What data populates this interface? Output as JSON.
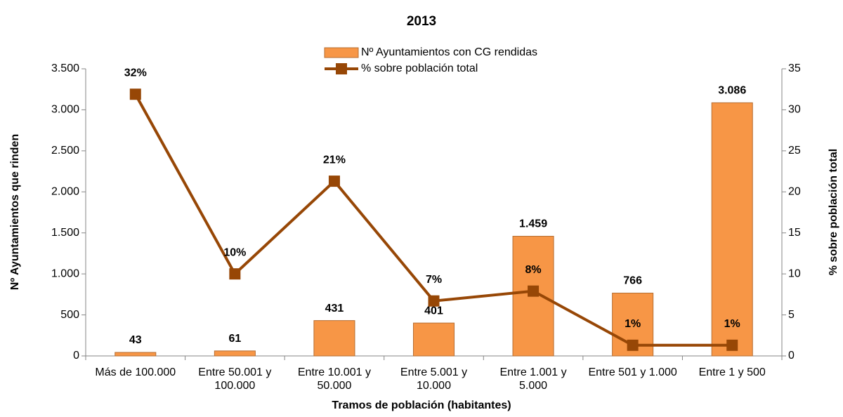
{
  "chart_data": {
    "type": "bar_line",
    "title": "2013",
    "x_label": "Tramos de población (habitantes)",
    "y_label": "Nº  Ayuntamientos que rinden",
    "y2_label": "% sobre población total",
    "categories": [
      "Más de 100.000",
      "Entre 50.001 y 100.000",
      "Entre 10.001 y 50.000",
      "Entre 5.001 y 10.000",
      "Entre 1.001 y 5.000",
      "Entre 501 y 1.000",
      "Entre 1 y 500"
    ],
    "series": [
      {
        "name": "Nº Ayuntamientos con CG rendidas",
        "type": "bar",
        "color": "#f79646",
        "values": [
          43,
          61,
          431,
          401,
          1459,
          766,
          3086
        ],
        "value_labels": [
          "43",
          "61",
          "431",
          "401",
          "1.459",
          "766",
          "3.086"
        ]
      },
      {
        "name": "% sobre población total",
        "type": "line",
        "axis": "y2",
        "color": "#974706",
        "values": [
          31.9,
          10,
          21.3,
          6.7,
          7.9,
          1.3,
          1.3
        ],
        "value_labels": [
          "32%",
          "10%",
          "21%",
          "7%",
          "8%",
          "1%",
          "1%"
        ]
      }
    ],
    "ylim": [
      0,
      3500
    ],
    "yticks": [
      0,
      500,
      {
        "value": 1000,
        "label": "1.000"
      },
      {
        "value": 1500,
        "label": "1.500"
      },
      {
        "value": 2000,
        "label": "2.000"
      },
      {
        "value": 2500,
        "label": "2.500"
      },
      {
        "value": 3000,
        "label": "3.000"
      },
      {
        "value": 3500,
        "label": "3.500"
      }
    ],
    "y2lim": [
      0,
      35
    ],
    "y2ticks": [
      0,
      5,
      10,
      15,
      20,
      25,
      30,
      35
    ],
    "legend": "top"
  }
}
